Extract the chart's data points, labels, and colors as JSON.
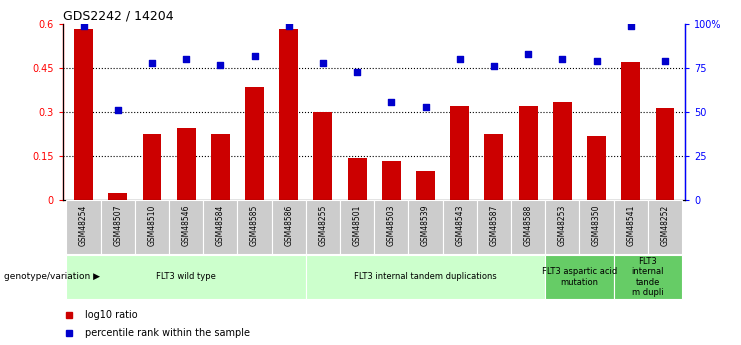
{
  "title": "GDS2242 / 14204",
  "samples": [
    "GSM48254",
    "GSM48507",
    "GSM48510",
    "GSM48546",
    "GSM48584",
    "GSM48585",
    "GSM48586",
    "GSM48255",
    "GSM48501",
    "GSM48503",
    "GSM48539",
    "GSM48543",
    "GSM48587",
    "GSM48588",
    "GSM48253",
    "GSM48350",
    "GSM48541",
    "GSM48252"
  ],
  "log10_ratio": [
    0.585,
    0.025,
    0.225,
    0.245,
    0.225,
    0.385,
    0.585,
    0.3,
    0.145,
    0.135,
    0.1,
    0.32,
    0.225,
    0.32,
    0.335,
    0.22,
    0.47,
    0.315
  ],
  "percentile_rank": [
    99,
    51,
    78,
    80,
    77,
    82,
    99,
    78,
    73,
    56,
    53,
    80,
    76,
    83,
    80,
    79,
    99,
    79
  ],
  "bar_color": "#cc0000",
  "dot_color": "#0000cc",
  "ylim_left": [
    0,
    0.6
  ],
  "ylim_right": [
    0,
    100
  ],
  "yticks_left": [
    0,
    0.15,
    0.3,
    0.45,
    0.6
  ],
  "yticks_right": [
    0,
    25,
    50,
    75,
    100
  ],
  "ytick_labels_left": [
    "0",
    "0.15",
    "0.3",
    "0.45",
    "0.6"
  ],
  "ytick_labels_right": [
    "0",
    "25",
    "50",
    "75",
    "100%"
  ],
  "groups": [
    {
      "label": "FLT3 wild type",
      "start": 0,
      "end": 6,
      "color": "#ccffcc"
    },
    {
      "label": "FLT3 internal tandem duplications",
      "start": 7,
      "end": 13,
      "color": "#ccffcc"
    },
    {
      "label": "FLT3 aspartic acid\nmutation",
      "start": 14,
      "end": 15,
      "color": "#66cc66"
    },
    {
      "label": "FLT3\ninternal\ntande\nm dupli",
      "start": 16,
      "end": 17,
      "color": "#66cc66"
    }
  ],
  "genotype_label": "genotype/variation",
  "background_color": "#ffffff"
}
